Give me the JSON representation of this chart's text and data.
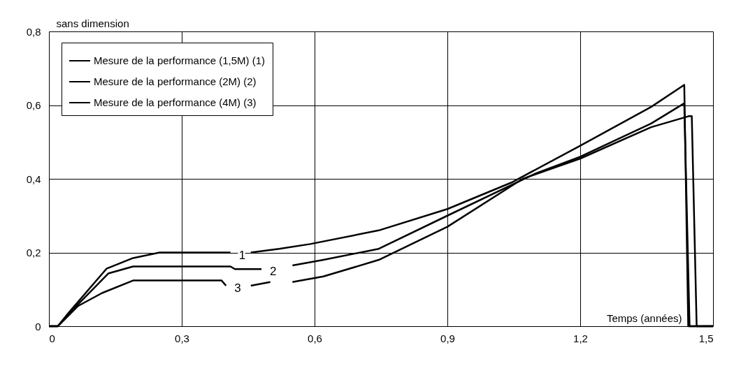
{
  "chart_data": {
    "type": "line",
    "xlabel": "Temps (années)",
    "ylabel": "sans dimension",
    "xlim": [
      0,
      1.5
    ],
    "ylim": [
      0,
      0.8
    ],
    "xticks": [
      0,
      {
        "value": 0.3,
        "label": "0,3"
      },
      {
        "value": 0.6,
        "label": "0,6"
      },
      {
        "value": 0.9,
        "label": "0,9"
      },
      {
        "value": 1.2,
        "label": "1,2"
      },
      {
        "value": 1.5,
        "label": "1,5"
      }
    ],
    "yticks": [
      0,
      {
        "value": 0.2,
        "label": "0,2"
      },
      {
        "value": 0.4,
        "label": "0,4"
      },
      {
        "value": 0.6,
        "label": "0,6"
      },
      {
        "value": 0.8,
        "label": "0,8"
      }
    ],
    "grid": true,
    "legend": "top left",
    "line_style": "solid",
    "marker": "none",
    "series": [
      {
        "name": "Mesure de la performance (1,5M) (1)",
        "color": "#000000",
        "x": [
          0,
          0.02,
          0.04,
          0.13,
          0.19,
          0.25,
          0.41,
          0.43,
          0.456,
          0.52,
          0.59,
          0.745,
          0.9,
          1.045,
          1.2,
          1.36,
          1.435,
          1.444,
          1.5
        ],
        "values": [
          0,
          0,
          0.03,
          0.156,
          0.185,
          0.2,
          0.2,
          null,
          0.2,
          0.21,
          0.223,
          0.26,
          0.318,
          0.39,
          0.49,
          0.595,
          0.655,
          0,
          0
        ]
      },
      {
        "name": "Mesure de la performance (2M) (2)",
        "color": "#000000",
        "x": [
          0,
          0.02,
          0.05,
          0.134,
          0.19,
          0.41,
          0.42,
          0.48,
          0.51,
          0.55,
          0.62,
          0.745,
          0.9,
          1.1,
          1.2,
          1.36,
          1.435,
          1.447,
          1.5
        ],
        "values": [
          0,
          0,
          0.04,
          0.143,
          0.162,
          0.162,
          0.155,
          0.155,
          null,
          0.165,
          0.18,
          0.21,
          0.3,
          0.415,
          0.46,
          0.55,
          0.605,
          0,
          0
        ]
      },
      {
        "name": "Mesure de la performance (4M) (3)",
        "color": "#000000",
        "x": [
          0,
          0.02,
          0.066,
          0.12,
          0.19,
          0.39,
          0.4,
          0.42,
          0.456,
          0.5,
          0.52,
          0.55,
          0.62,
          0.745,
          0.9,
          1.07,
          1.2,
          1.36,
          1.445,
          1.452,
          1.463,
          1.5
        ],
        "values": [
          0,
          0,
          0.055,
          0.09,
          0.124,
          0.124,
          0.11,
          null,
          0.11,
          0.12,
          null,
          0.12,
          0.135,
          0.18,
          0.27,
          0.4,
          0.455,
          0.54,
          0.57,
          0.57,
          0,
          0
        ]
      }
    ],
    "annotations": [
      {
        "text": "1",
        "x": 0.41,
        "y": 0.2
      },
      {
        "text": "2",
        "x": 0.48,
        "y": 0.155
      },
      {
        "text": "3",
        "x": 0.4,
        "y": 0.11
      }
    ]
  }
}
